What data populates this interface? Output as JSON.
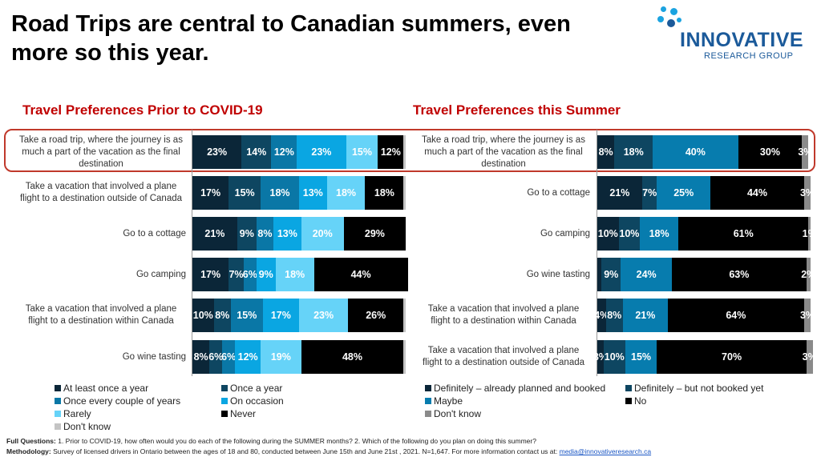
{
  "title": "Road Trips are central to Canadian summers, even more so this year.",
  "logo": {
    "name": "INNOVATIVE",
    "sub": "RESEARCH GROUP"
  },
  "chart_data": [
    {
      "type": "bar",
      "stacked": true,
      "orientation": "horizontal",
      "title": "Travel Preferences Prior to COVID-19",
      "categories": [
        "Take a road trip, where the journey is as much a part of the vacation as the final destination",
        "Take a vacation that involved a plane flight to a destination outside of Canada",
        "Go to a cottage",
        "Go camping",
        "Take a vacation that involved a plane flight to a destination within Canada",
        "Go wine tasting"
      ],
      "series": [
        {
          "name": "At least once a year",
          "color": "#0b2638",
          "values": [
            23,
            17,
            21,
            17,
            10,
            8
          ]
        },
        {
          "name": "Once a year",
          "color": "#0e4661",
          "values": [
            14,
            15,
            9,
            7,
            8,
            6
          ]
        },
        {
          "name": "Once every couple of years",
          "color": "#0a77a6",
          "values": [
            12,
            18,
            8,
            6,
            15,
            6
          ]
        },
        {
          "name": "On occasion",
          "color": "#0aa6e2",
          "values": [
            23,
            13,
            13,
            9,
            17,
            12
          ]
        },
        {
          "name": "Rarely",
          "color": "#66d3f8",
          "values": [
            15,
            18,
            20,
            18,
            23,
            19
          ]
        },
        {
          "name": "Never",
          "color": "#000000",
          "values": [
            12,
            18,
            29,
            44,
            26,
            48
          ]
        },
        {
          "name": "Don't know",
          "color": "#c4c4c4",
          "values": [
            1,
            1,
            0,
            0,
            1,
            1
          ],
          "labels_shown": false
        }
      ],
      "highlight_row": 0,
      "legend_position": "bottom"
    },
    {
      "type": "bar",
      "stacked": true,
      "orientation": "horizontal",
      "title": "Travel Preferences this Summer",
      "categories": [
        "Take a road trip, where the journey is as much a part of the vacation as the final destination",
        "Go to a cottage",
        "Go camping",
        "Go wine tasting",
        "Take a vacation that involved a plane flight to a destination within Canada",
        "Take a vacation that involved a plane flight to a destination outside of Canada"
      ],
      "series": [
        {
          "name": "Definitely – already planned and booked",
          "color": "#0b2638",
          "values": [
            8,
            21,
            10,
            2,
            4,
            3
          ],
          "labels": [
            "8%",
            "21%",
            "10%",
            "",
            "4%",
            "3%"
          ]
        },
        {
          "name": "Definitely – but not booked yet",
          "color": "#0e4661",
          "values": [
            18,
            7,
            10,
            9,
            8,
            10
          ]
        },
        {
          "name": "Maybe",
          "color": "#077cae",
          "values": [
            40,
            25,
            18,
            24,
            21,
            15
          ]
        },
        {
          "name": "No",
          "color": "#000000",
          "values": [
            30,
            44,
            61,
            63,
            64,
            70
          ]
        },
        {
          "name": "Don't know",
          "color": "#8a8a8a",
          "values": [
            3,
            3,
            1,
            2,
            3,
            3
          ]
        }
      ],
      "highlight_row": 0,
      "legend_position": "bottom"
    }
  ],
  "footer": {
    "q_label": "Full Questions:",
    "q_text": " 1. Prior to COVID-19, how often would you do each of the following during the SUMMER months? 2. Which of the following do you plan on doing this summer?",
    "m_label": "Methodology:",
    "m_text": " Survey of licensed drivers in Ontario between the ages of 18 and 80, conducted between  June 15th and June 21st , 2021. N=1,647. For more information contact us at: ",
    "email": "media@innovativeresearch.ca"
  }
}
